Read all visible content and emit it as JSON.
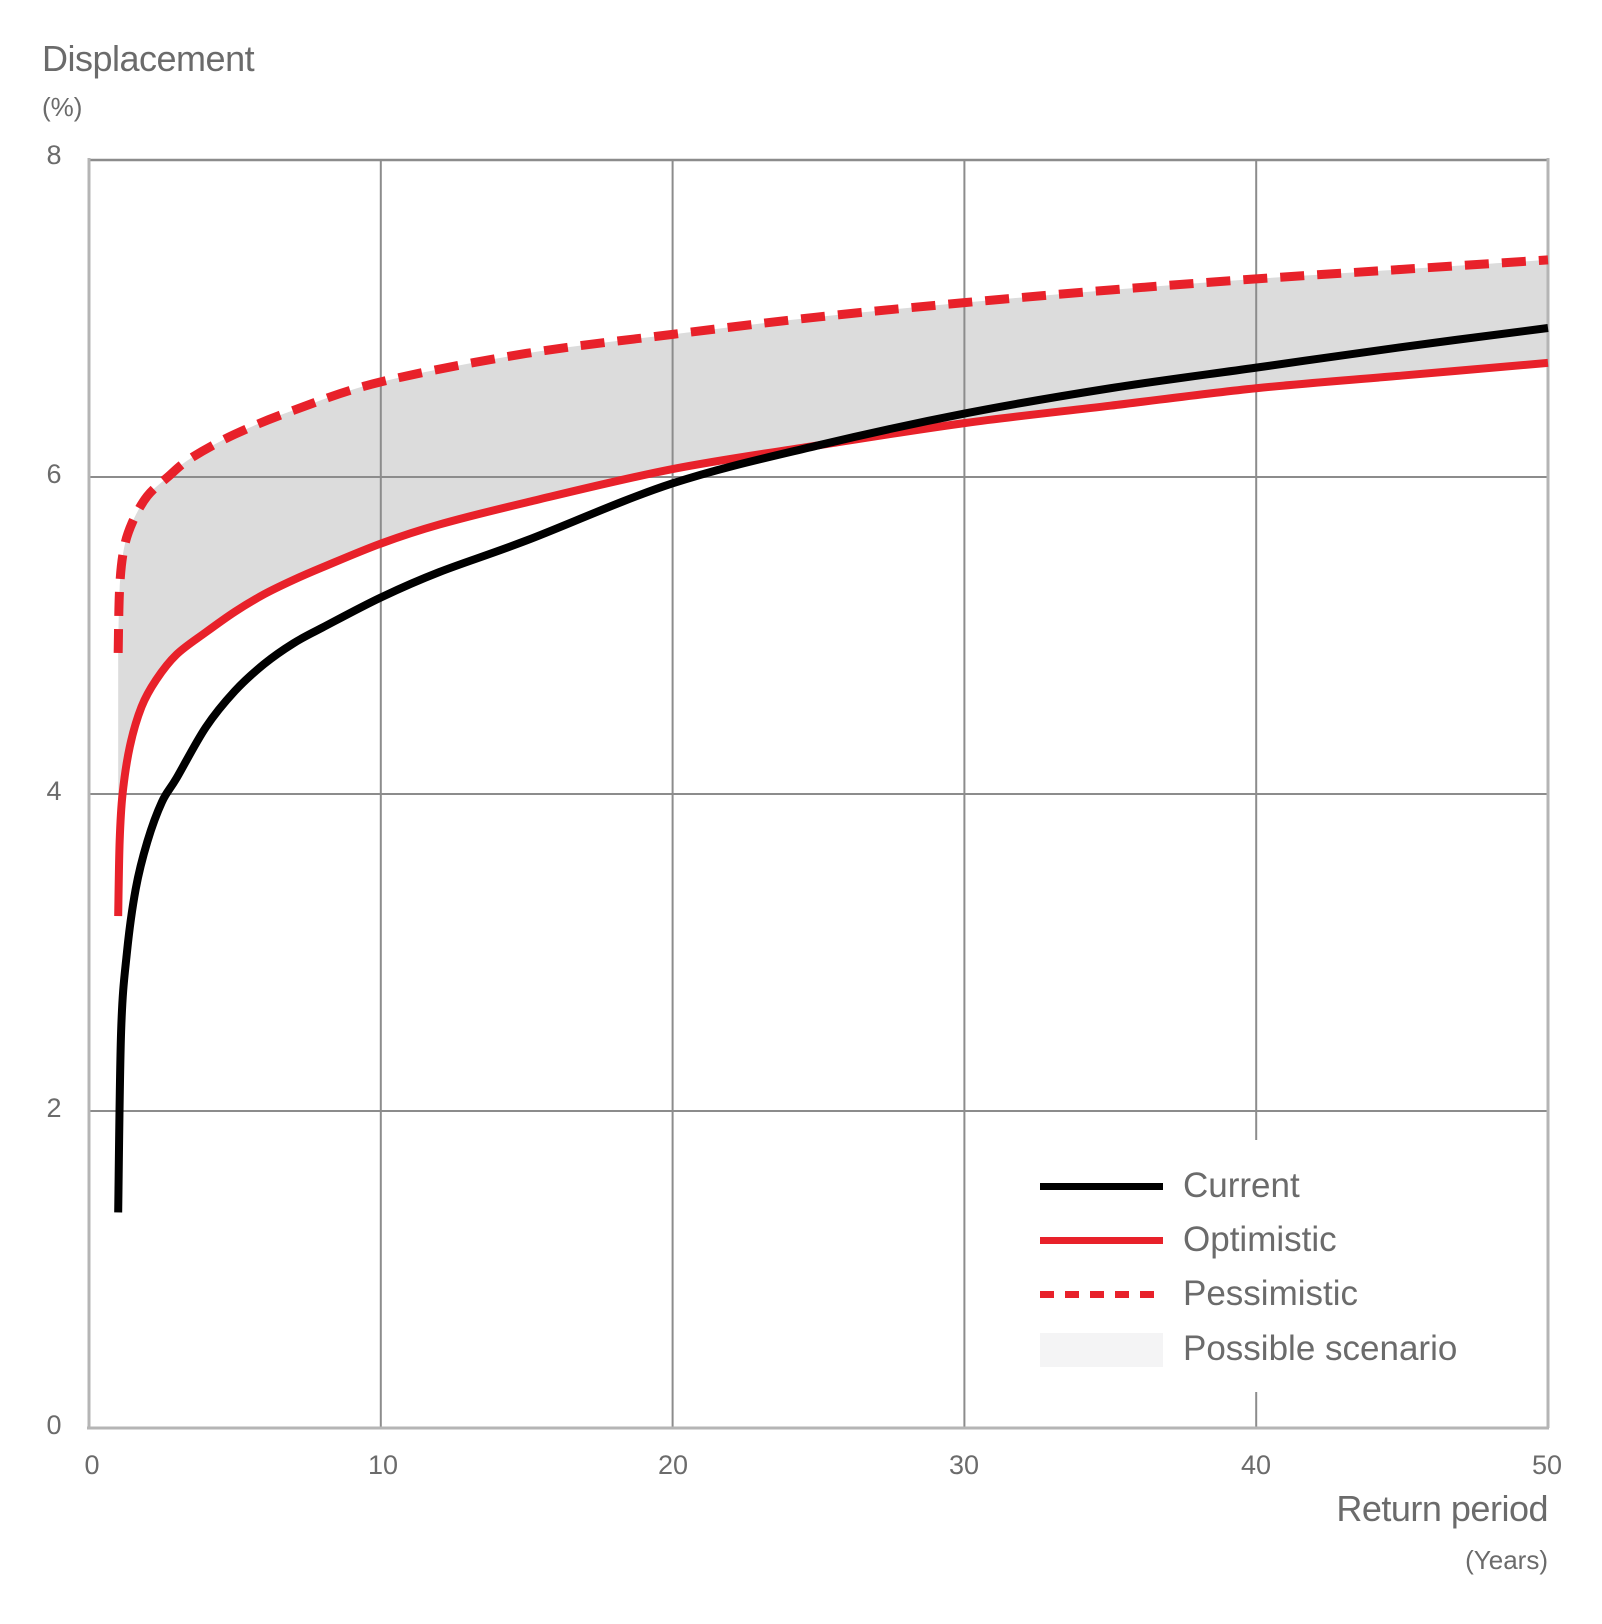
{
  "chart_data": {
    "type": "line",
    "title": "",
    "xlabel": "Return period",
    "xlabel_unit": "(Years)",
    "ylabel": "Displacement",
    "ylabel_unit": "(%)",
    "xlim": [
      0,
      50
    ],
    "ylim": [
      0,
      8
    ],
    "x_ticks": [
      "0",
      "10",
      "20",
      "30",
      "40",
      "50"
    ],
    "y_ticks": [
      "0",
      "2",
      "4",
      "6",
      "8"
    ],
    "grid": true,
    "legend_position": "lower right",
    "series": [
      {
        "name": "Current",
        "style": "solid",
        "color": "#000000",
        "x": [
          1,
          1.1,
          1.3,
          1.6,
          2,
          2.5,
          3,
          4,
          5,
          6,
          7,
          8,
          10,
          12,
          15,
          20,
          25,
          30,
          35,
          40,
          45,
          50
        ],
        "values": [
          1.36,
          2.5,
          3.0,
          3.4,
          3.7,
          3.95,
          4.1,
          4.42,
          4.65,
          4.82,
          4.95,
          5.05,
          5.24,
          5.4,
          5.6,
          5.96,
          6.2,
          6.4,
          6.56,
          6.69,
          6.82,
          6.94
        ]
      },
      {
        "name": "Optimistic",
        "style": "solid",
        "color": "#e8212a",
        "x": [
          1,
          1.05,
          1.15,
          1.4,
          1.8,
          2.3,
          3,
          4,
          5,
          6,
          7,
          8,
          10,
          12,
          15,
          20,
          25,
          30,
          35,
          40,
          45,
          50
        ],
        "values": [
          3.23,
          3.7,
          4.0,
          4.3,
          4.55,
          4.72,
          4.88,
          5.02,
          5.15,
          5.26,
          5.35,
          5.43,
          5.58,
          5.7,
          5.84,
          6.05,
          6.2,
          6.34,
          6.45,
          6.56,
          6.64,
          6.72
        ]
      },
      {
        "name": "Pessimistic",
        "style": "dashed",
        "color": "#e8212a",
        "x": [
          1,
          1.05,
          1.2,
          1.5,
          2,
          2.7,
          3.5,
          5,
          7,
          10,
          15,
          20,
          25,
          30,
          35,
          40,
          45,
          50
        ],
        "values": [
          4.89,
          5.3,
          5.55,
          5.72,
          5.88,
          6.0,
          6.12,
          6.27,
          6.42,
          6.6,
          6.78,
          6.9,
          7.01,
          7.1,
          7.18,
          7.25,
          7.31,
          7.37
        ]
      }
    ],
    "area": {
      "name": "Possible scenario",
      "color": "#dcdcdc",
      "lower": "Optimistic",
      "upper": "Pessimistic"
    }
  },
  "axes": {
    "ylabel_title": "Displacement",
    "ylabel_unit": "(%)",
    "xlabel_title": "Return period",
    "xlabel_unit": "(Years)"
  },
  "legend": {
    "items": [
      {
        "label": "Current",
        "type": "line",
        "color": "#000000"
      },
      {
        "label": "Optimistic",
        "type": "line",
        "color": "#e8212a"
      },
      {
        "label": "Pessimistic",
        "type": "dashed",
        "color": "#e8212a"
      },
      {
        "label": "Possible scenario",
        "type": "area",
        "color": "#f4f4f5"
      }
    ]
  },
  "colors": {
    "grid": "#8c8c8c",
    "axis": "#b5b5b5",
    "text": "#6b6b6b"
  }
}
